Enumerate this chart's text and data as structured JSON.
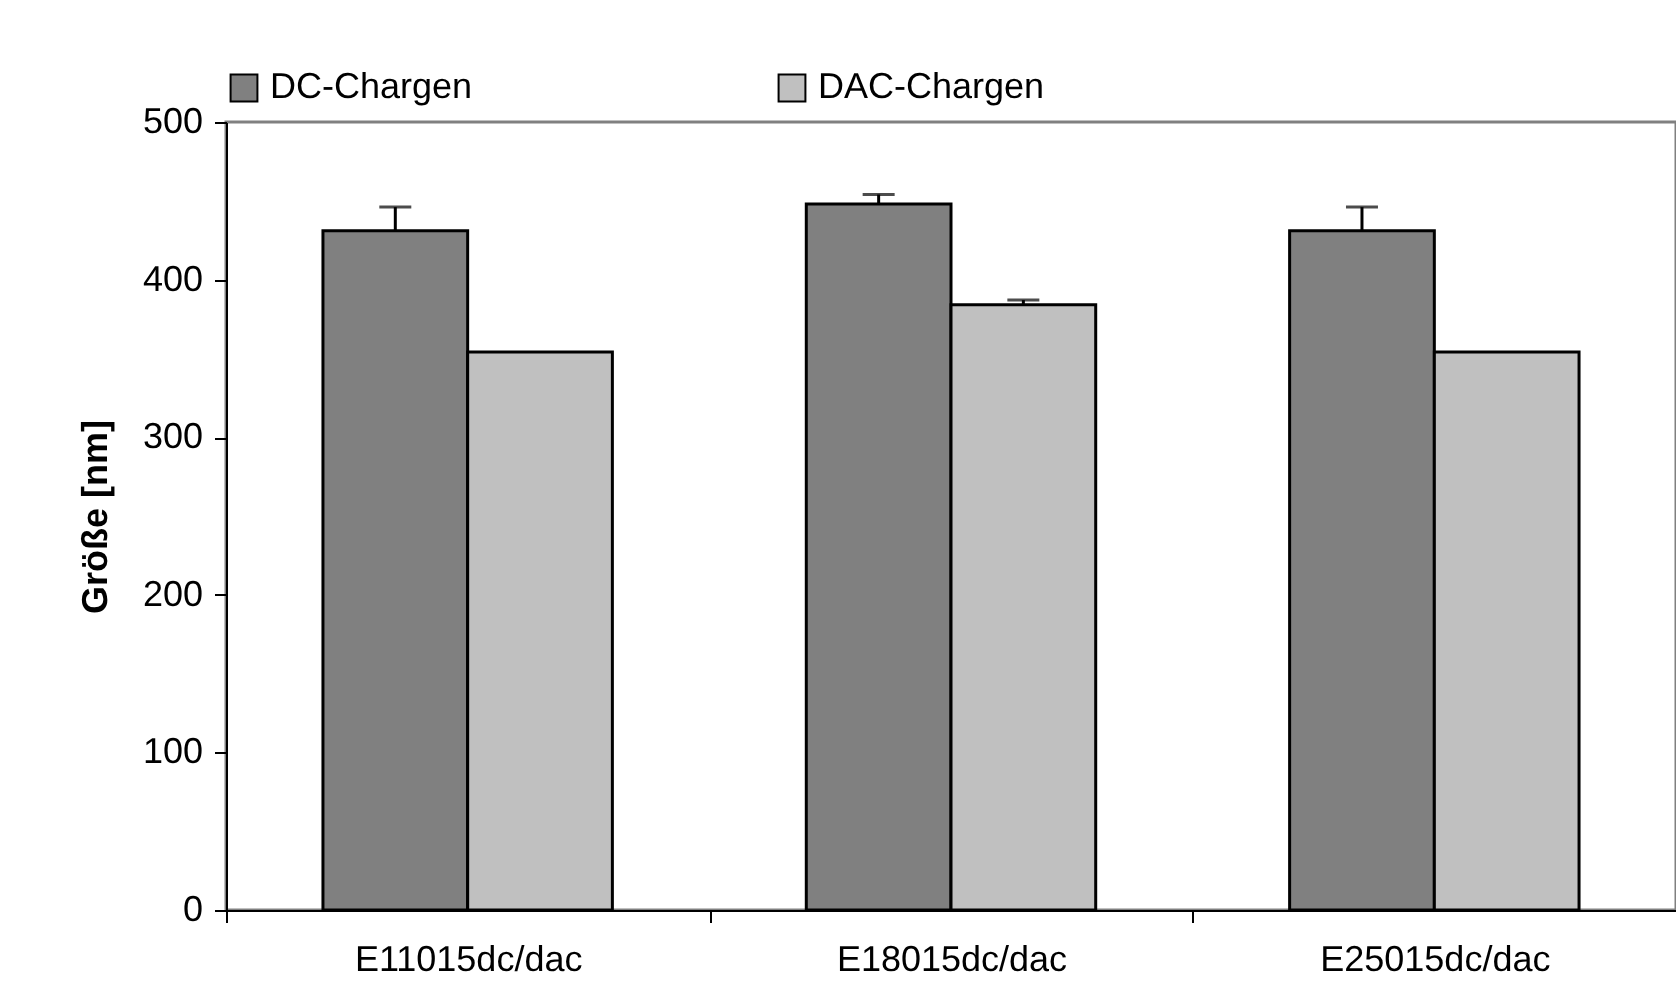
{
  "chart_data": {
    "type": "bar",
    "ylabel": "Größe [nm]",
    "categories": [
      "E11015dc/dac",
      "E18015dc/dac",
      "E25015dc/dac"
    ],
    "series": [
      {
        "name": "DC-Chargen",
        "color": "#808080",
        "values": [
          431,
          448,
          431
        ],
        "errors": [
          [
            431,
            446
          ],
          [
            448,
            454
          ],
          [
            431,
            446
          ]
        ]
      },
      {
        "name": "DAC-Chargen",
        "color": "#c0c0c0",
        "values": [
          354,
          384,
          354
        ],
        "errors": [
          null,
          [
            384,
            387
          ],
          null
        ]
      }
    ],
    "ylim": [
      0,
      500
    ],
    "yticks": [
      0,
      100,
      200,
      300,
      400,
      500
    ],
    "grid": false,
    "legend": "top"
  }
}
